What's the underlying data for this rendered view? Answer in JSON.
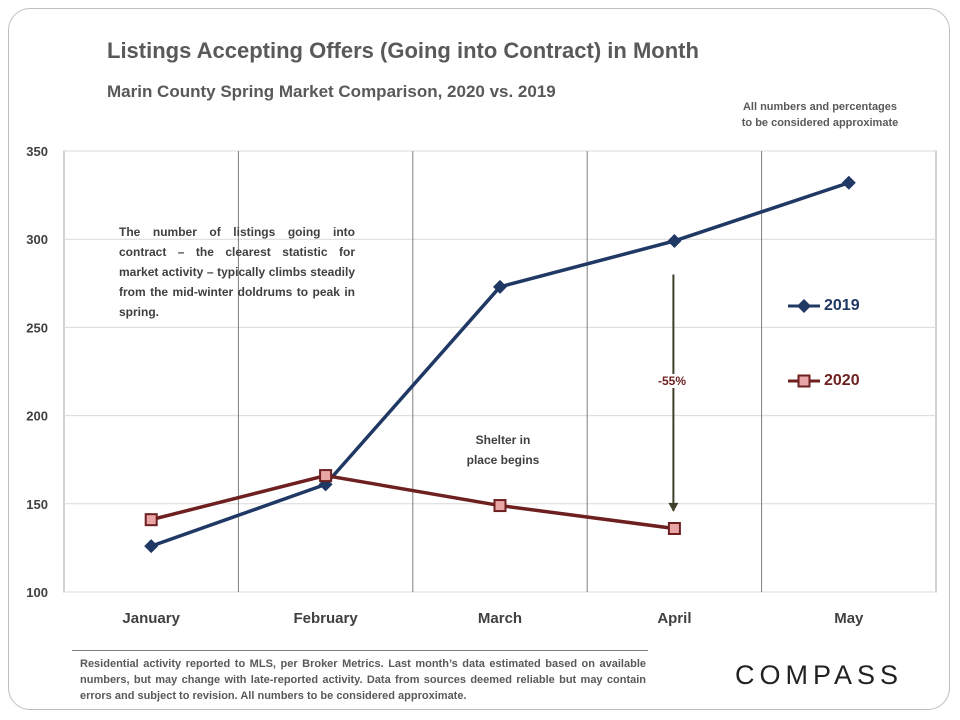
{
  "title": "Listings Accepting Offers (Going into Contract) in Month",
  "subtitle": "Marin County Spring Market Comparison,  2020 vs. 2019",
  "disclaimer": [
    "All numbers and percentages",
    "to be considered approximate"
  ],
  "note": "The number of listings going into contract – the clearest statistic for market activity – typically climbs steadily from the mid-winter doldrums to peak in spring.",
  "annotations": {
    "shelter": [
      "Shelter in",
      "place begins"
    ],
    "change": "-55%"
  },
  "footer": "Residential activity reported to MLS, per Broker Metrics. Last month’s data estimated based on available numbers, but may change with late-reported activity. Data from sources deemed reliable but may contain errors and subject to revision. All numbers to be considered approximate.",
  "logo": "COMPASS",
  "colors": {
    "series_2019": "#1f3864",
    "series_2020": "#6e1f1f",
    "marker_2020_fill": "#e8a6a6",
    "grid": "#a6a6a6"
  },
  "chart_data": {
    "type": "line",
    "title": "Listings Accepting Offers (Going into Contract) in Month",
    "xlabel": "",
    "ylabel": "",
    "categories": [
      "January",
      "February",
      "March",
      "April",
      "May"
    ],
    "ylim": [
      100,
      350
    ],
    "yticks": [
      100,
      150,
      200,
      250,
      300,
      350
    ],
    "legend": "right",
    "series": [
      {
        "name": "2019",
        "marker": "diamond",
        "values": [
          126,
          161,
          273,
          299,
          332
        ]
      },
      {
        "name": "2020",
        "marker": "square",
        "values": [
          141,
          166,
          149,
          136,
          null
        ]
      }
    ]
  }
}
